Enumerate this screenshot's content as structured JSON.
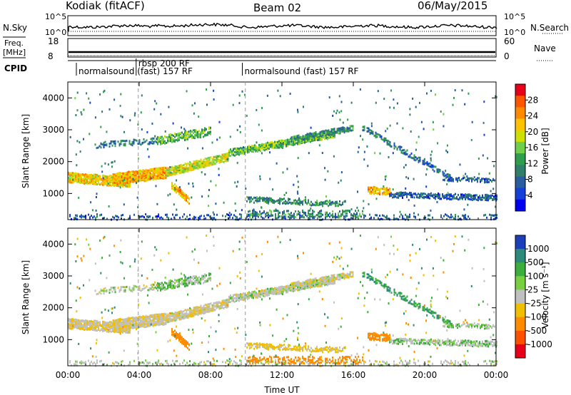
{
  "header": {
    "station": "Kodiak (fitACF)",
    "beam": "Beam 02",
    "date": "06/May/2015"
  },
  "strip_labels": {
    "nsky": "N.Sky",
    "nsearch": "N.Search",
    "freq_line1": "Freq.",
    "freq_line2": "[MHz]",
    "nave": "Nave",
    "cpid": "CPID",
    "nsky_ticks": [
      "10^5",
      "10^0"
    ],
    "nsearch_ticks": [
      "10^5",
      "10^0"
    ],
    "freq_ticks": [
      "18",
      "8"
    ],
    "nave_ticks": [
      "60",
      "0"
    ]
  },
  "cpid_segments": [
    {
      "label": "normalsound (fast) 157 RF",
      "start_hour": 0.6
    },
    {
      "label": "rbsp 200 RF",
      "start_hour": 3.95
    },
    {
      "label": "normalsound (fast) 157 RF",
      "start_hour": 9.9
    }
  ],
  "power_colorbar": {
    "title": "Power [dB]",
    "ticks": [
      "28",
      "24",
      "20",
      "16",
      "12",
      "8",
      "4"
    ],
    "colors": [
      "#e8001a",
      "#ff5500",
      "#ff8a00",
      "#ffc200",
      "#cfe000",
      "#6fcf4a",
      "#2e9d4d",
      "#2f7f6a",
      "#2a5ca0",
      "#1240d8",
      "#0000f0"
    ]
  },
  "velocity_colorbar": {
    "title": "Velocity [m s⁻¹]",
    "ticks": [
      "1000",
      "500",
      "100",
      "25",
      "-25",
      "-100",
      "-500",
      "-1000"
    ],
    "colors": [
      "#1a3fb8",
      "#2c8a7a",
      "#3cae3c",
      "#78d040",
      "#c0c0c0",
      "#f0c000",
      "#ff8c00",
      "#ff5000",
      "#e8001a"
    ]
  },
  "chart_data": [
    {
      "type": "heatmap",
      "name_hint": "power",
      "ylabel": "Slant Range [km]",
      "yticks": [
        1000,
        2000,
        3000,
        4000
      ],
      "ylim": [
        180,
        4500
      ],
      "xlim": [
        0,
        24
      ],
      "bands": [
        {
          "t0": 0.0,
          "t1": 3.5,
          "r0": 1550,
          "r1": 1400,
          "width": 300,
          "power": 20,
          "vel": -20,
          "density": 0.95
        },
        {
          "t0": 2.5,
          "t1": 5.5,
          "r0": 1500,
          "r1": 1700,
          "width": 350,
          "power": 22,
          "vel": -20,
          "density": 0.95
        },
        {
          "t0": 5.5,
          "t1": 9.0,
          "r0": 1700,
          "r1": 2200,
          "width": 250,
          "power": 18,
          "vel": -15,
          "density": 0.9
        },
        {
          "t0": 9.0,
          "t1": 15.0,
          "r0": 2300,
          "r1": 2900,
          "width": 180,
          "power": 14,
          "vel": 0,
          "density": 0.9
        },
        {
          "t0": 12.5,
          "t1": 16.0,
          "r0": 2750,
          "r1": 3100,
          "width": 160,
          "power": 10,
          "vel": -10,
          "density": 0.8
        },
        {
          "t0": 1.5,
          "t1": 5.0,
          "r0": 2550,
          "r1": 2700,
          "width": 150,
          "power": 8,
          "vel": 0,
          "density": 0.5
        },
        {
          "t0": 5.0,
          "t1": 8.0,
          "r0": 2700,
          "r1": 3000,
          "width": 250,
          "power": 14,
          "vel": 20,
          "density": 0.7
        },
        {
          "t0": 5.8,
          "t1": 6.8,
          "r0": 1300,
          "r1": 800,
          "width": 200,
          "power": 22,
          "vel": -300,
          "density": 0.85
        },
        {
          "t0": 10.0,
          "t1": 15.5,
          "r0": 850,
          "r1": 700,
          "width": 150,
          "power": 10,
          "vel": -40,
          "density": 0.6
        },
        {
          "t0": 16.8,
          "t1": 18.0,
          "r0": 1150,
          "r1": 1100,
          "width": 200,
          "power": 22,
          "vel": -300,
          "density": 0.8
        },
        {
          "t0": 16.5,
          "t1": 21.5,
          "r0": 3100,
          "r1": 1500,
          "width": 150,
          "power": 8,
          "vel": 100,
          "density": 0.55
        },
        {
          "t0": 18.0,
          "t1": 24.0,
          "r0": 1000,
          "r1": 900,
          "width": 150,
          "power": 6,
          "vel": 10,
          "density": 0.7
        },
        {
          "t0": 21.0,
          "t1": 24.0,
          "r0": 1500,
          "r1": 1450,
          "width": 120,
          "power": 6,
          "vel": 10,
          "density": 0.5
        },
        {
          "t0": 0.0,
          "t1": 24.0,
          "r0": 300,
          "r1": 300,
          "width": 150,
          "power": 6,
          "vel": 0,
          "density": 0.25
        },
        {
          "t0": 10.0,
          "t1": 16.5,
          "r0": 400,
          "r1": 400,
          "width": 200,
          "power": 10,
          "vel": -200,
          "density": 0.4
        }
      ]
    },
    {
      "type": "heatmap",
      "name_hint": "velocity",
      "ylabel": "Slant Range [km]",
      "xlabel": "Time UT",
      "xticks": [
        "00:00",
        "04:00",
        "08:00",
        "12:00",
        "16:00",
        "20:00",
        "00:00"
      ],
      "yticks": [
        1000,
        2000,
        3000,
        4000
      ],
      "ylim": [
        180,
        4500
      ],
      "xlim": [
        0,
        24
      ]
    }
  ]
}
